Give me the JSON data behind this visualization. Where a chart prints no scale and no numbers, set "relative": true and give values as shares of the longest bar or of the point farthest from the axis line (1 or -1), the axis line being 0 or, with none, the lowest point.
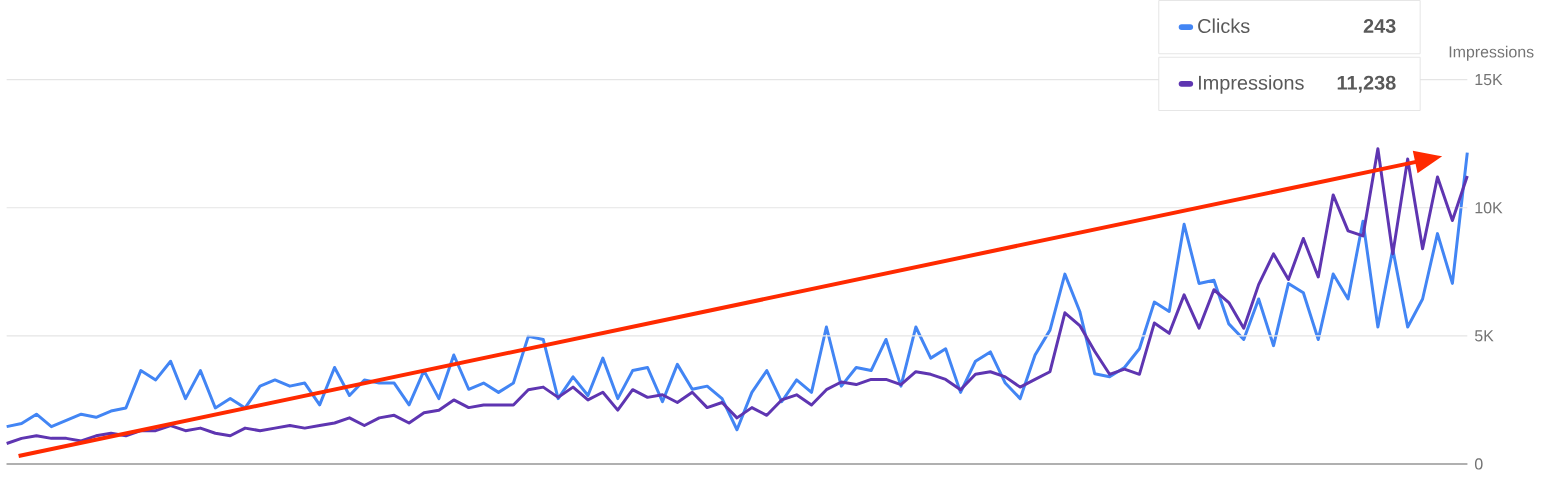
{
  "chart_data": [
    {
      "type": "line",
      "relative": true,
      "categories": [
        null,
        null,
        null,
        null,
        null,
        null,
        null,
        null,
        null,
        null,
        null,
        null,
        null,
        null,
        null,
        null,
        null,
        null,
        null,
        null,
        null,
        null,
        null,
        null,
        null,
        null,
        null,
        null,
        null,
        null,
        null,
        null,
        null,
        null,
        null,
        null,
        null,
        null,
        null,
        null,
        null,
        null,
        null,
        null,
        null,
        null,
        null,
        null,
        null,
        null,
        null,
        null,
        null,
        null,
        null,
        null,
        null,
        null,
        null,
        null,
        null,
        null,
        null,
        null,
        null,
        null,
        null,
        null,
        null,
        null,
        null,
        null,
        null,
        null,
        null,
        null,
        null,
        null,
        null,
        null,
        null,
        null,
        null,
        null,
        null,
        null,
        null,
        null,
        null,
        null,
        null,
        null,
        null,
        null,
        null,
        null,
        null,
        null,
        null
      ],
      "series": [
        {
          "name": "Clicks",
          "color": "#4285f4",
          "values": [
            0.12,
            0.13,
            0.16,
            0.12,
            0.14,
            0.16,
            0.15,
            0.17,
            0.18,
            0.3,
            0.27,
            0.33,
            0.21,
            0.3,
            0.18,
            0.21,
            0.18,
            0.25,
            0.27,
            0.25,
            0.26,
            0.19,
            0.31,
            0.22,
            0.27,
            0.26,
            0.26,
            0.19,
            0.3,
            0.21,
            0.35,
            0.24,
            0.26,
            0.23,
            0.26,
            0.41,
            0.4,
            0.21,
            0.28,
            0.22,
            0.34,
            0.21,
            0.3,
            0.31,
            0.2,
            0.32,
            0.24,
            0.25,
            0.21,
            0.11,
            0.23,
            0.3,
            0.2,
            0.27,
            0.23,
            0.44,
            0.25,
            0.31,
            0.3,
            0.4,
            0.25,
            0.44,
            0.34,
            0.37,
            0.23,
            0.33,
            0.36,
            0.26,
            0.21,
            0.35,
            0.43,
            0.61,
            0.49,
            0.29,
            0.28,
            0.31,
            0.37,
            0.52,
            0.49,
            0.77,
            0.58,
            0.59,
            0.45,
            0.4,
            0.53,
            0.38,
            0.58,
            0.55,
            0.4,
            0.61,
            0.53,
            0.78,
            0.44,
            0.69,
            0.44,
            0.53,
            0.74,
            0.58,
            1
          ]
        }
      ],
      "tick_labels": false,
      "legend": "top right",
      "annotations": [
        "243"
      ]
    },
    {
      "type": "line",
      "ylabel": "Impressions",
      "categories": [
        null,
        null,
        null,
        null,
        null,
        null,
        null,
        null,
        null,
        null,
        null,
        null,
        null,
        null,
        null,
        null,
        null,
        null,
        null,
        null,
        null,
        null,
        null,
        null,
        null,
        null,
        null,
        null,
        null,
        null,
        null,
        null,
        null,
        null,
        null,
        null,
        null,
        null,
        null,
        null,
        null,
        null,
        null,
        null,
        null,
        null,
        null,
        null,
        null,
        null,
        null,
        null,
        null,
        null,
        null,
        null,
        null,
        null,
        null,
        null,
        null,
        null,
        null,
        null,
        null,
        null,
        null,
        null,
        null,
        null,
        null,
        null,
        null,
        null,
        null,
        null,
        null,
        null,
        null,
        null,
        null,
        null,
        null,
        null,
        null,
        null,
        null,
        null,
        null,
        null,
        null,
        null,
        null,
        null,
        null,
        null,
        null,
        null,
        null
      ],
      "series": [
        {
          "name": "Impressions",
          "color": "#5e35b1",
          "values": [
            800,
            1000,
            1100,
            1000,
            1000,
            900,
            1100,
            1200,
            1100,
            1300,
            1300,
            1500,
            1300,
            1400,
            1200,
            1100,
            1400,
            1300,
            1400,
            1500,
            1400,
            1500,
            1600,
            1800,
            1500,
            1800,
            1900,
            1600,
            2000,
            2100,
            2500,
            2200,
            2300,
            2300,
            2300,
            2900,
            3000,
            2600,
            3000,
            2500,
            2800,
            2100,
            2900,
            2600,
            2700,
            2400,
            2800,
            2200,
            2400,
            1800,
            2200,
            1900,
            2500,
            2700,
            2300,
            2900,
            3200,
            3100,
            3300,
            3300,
            3100,
            3600,
            3500,
            3300,
            2900,
            3500,
            3600,
            3400,
            3000,
            3300,
            3600,
            5900,
            5400,
            4400,
            3500,
            3700,
            3500,
            5500,
            5100,
            6600,
            5300,
            6800,
            6300,
            5300,
            7000,
            8200,
            7200,
            8800,
            7300,
            10500,
            9100,
            8900,
            12300,
            8200,
            11900,
            8400,
            11200,
            9500,
            11238
          ]
        }
      ],
      "ylim": [
        0,
        15000
      ],
      "yticks": [
        0,
        {
          "value": 5000,
          "label": "5K"
        },
        {
          "value": 10000,
          "label": "10K"
        },
        {
          "value": 15000,
          "label": "15K"
        }
      ],
      "tick_labels": "y",
      "grid": "y",
      "legend": "top right",
      "annotations": [
        "11,238"
      ]
    }
  ]
}
